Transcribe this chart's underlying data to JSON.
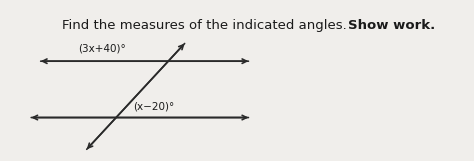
{
  "title_normal": "Find the measures of the indicated angles.  ",
  "title_bold": "Show work.",
  "bg_color": "#f0eeeb",
  "line_color": "#2a2a2a",
  "text_color": "#1a1a1a",
  "label1": "(3x+40)°",
  "label2": "(x−20)°",
  "figsize": [
    4.74,
    1.61
  ],
  "dpi": 100,
  "title_fontsize": 9.5,
  "label_fontsize": 7.5
}
